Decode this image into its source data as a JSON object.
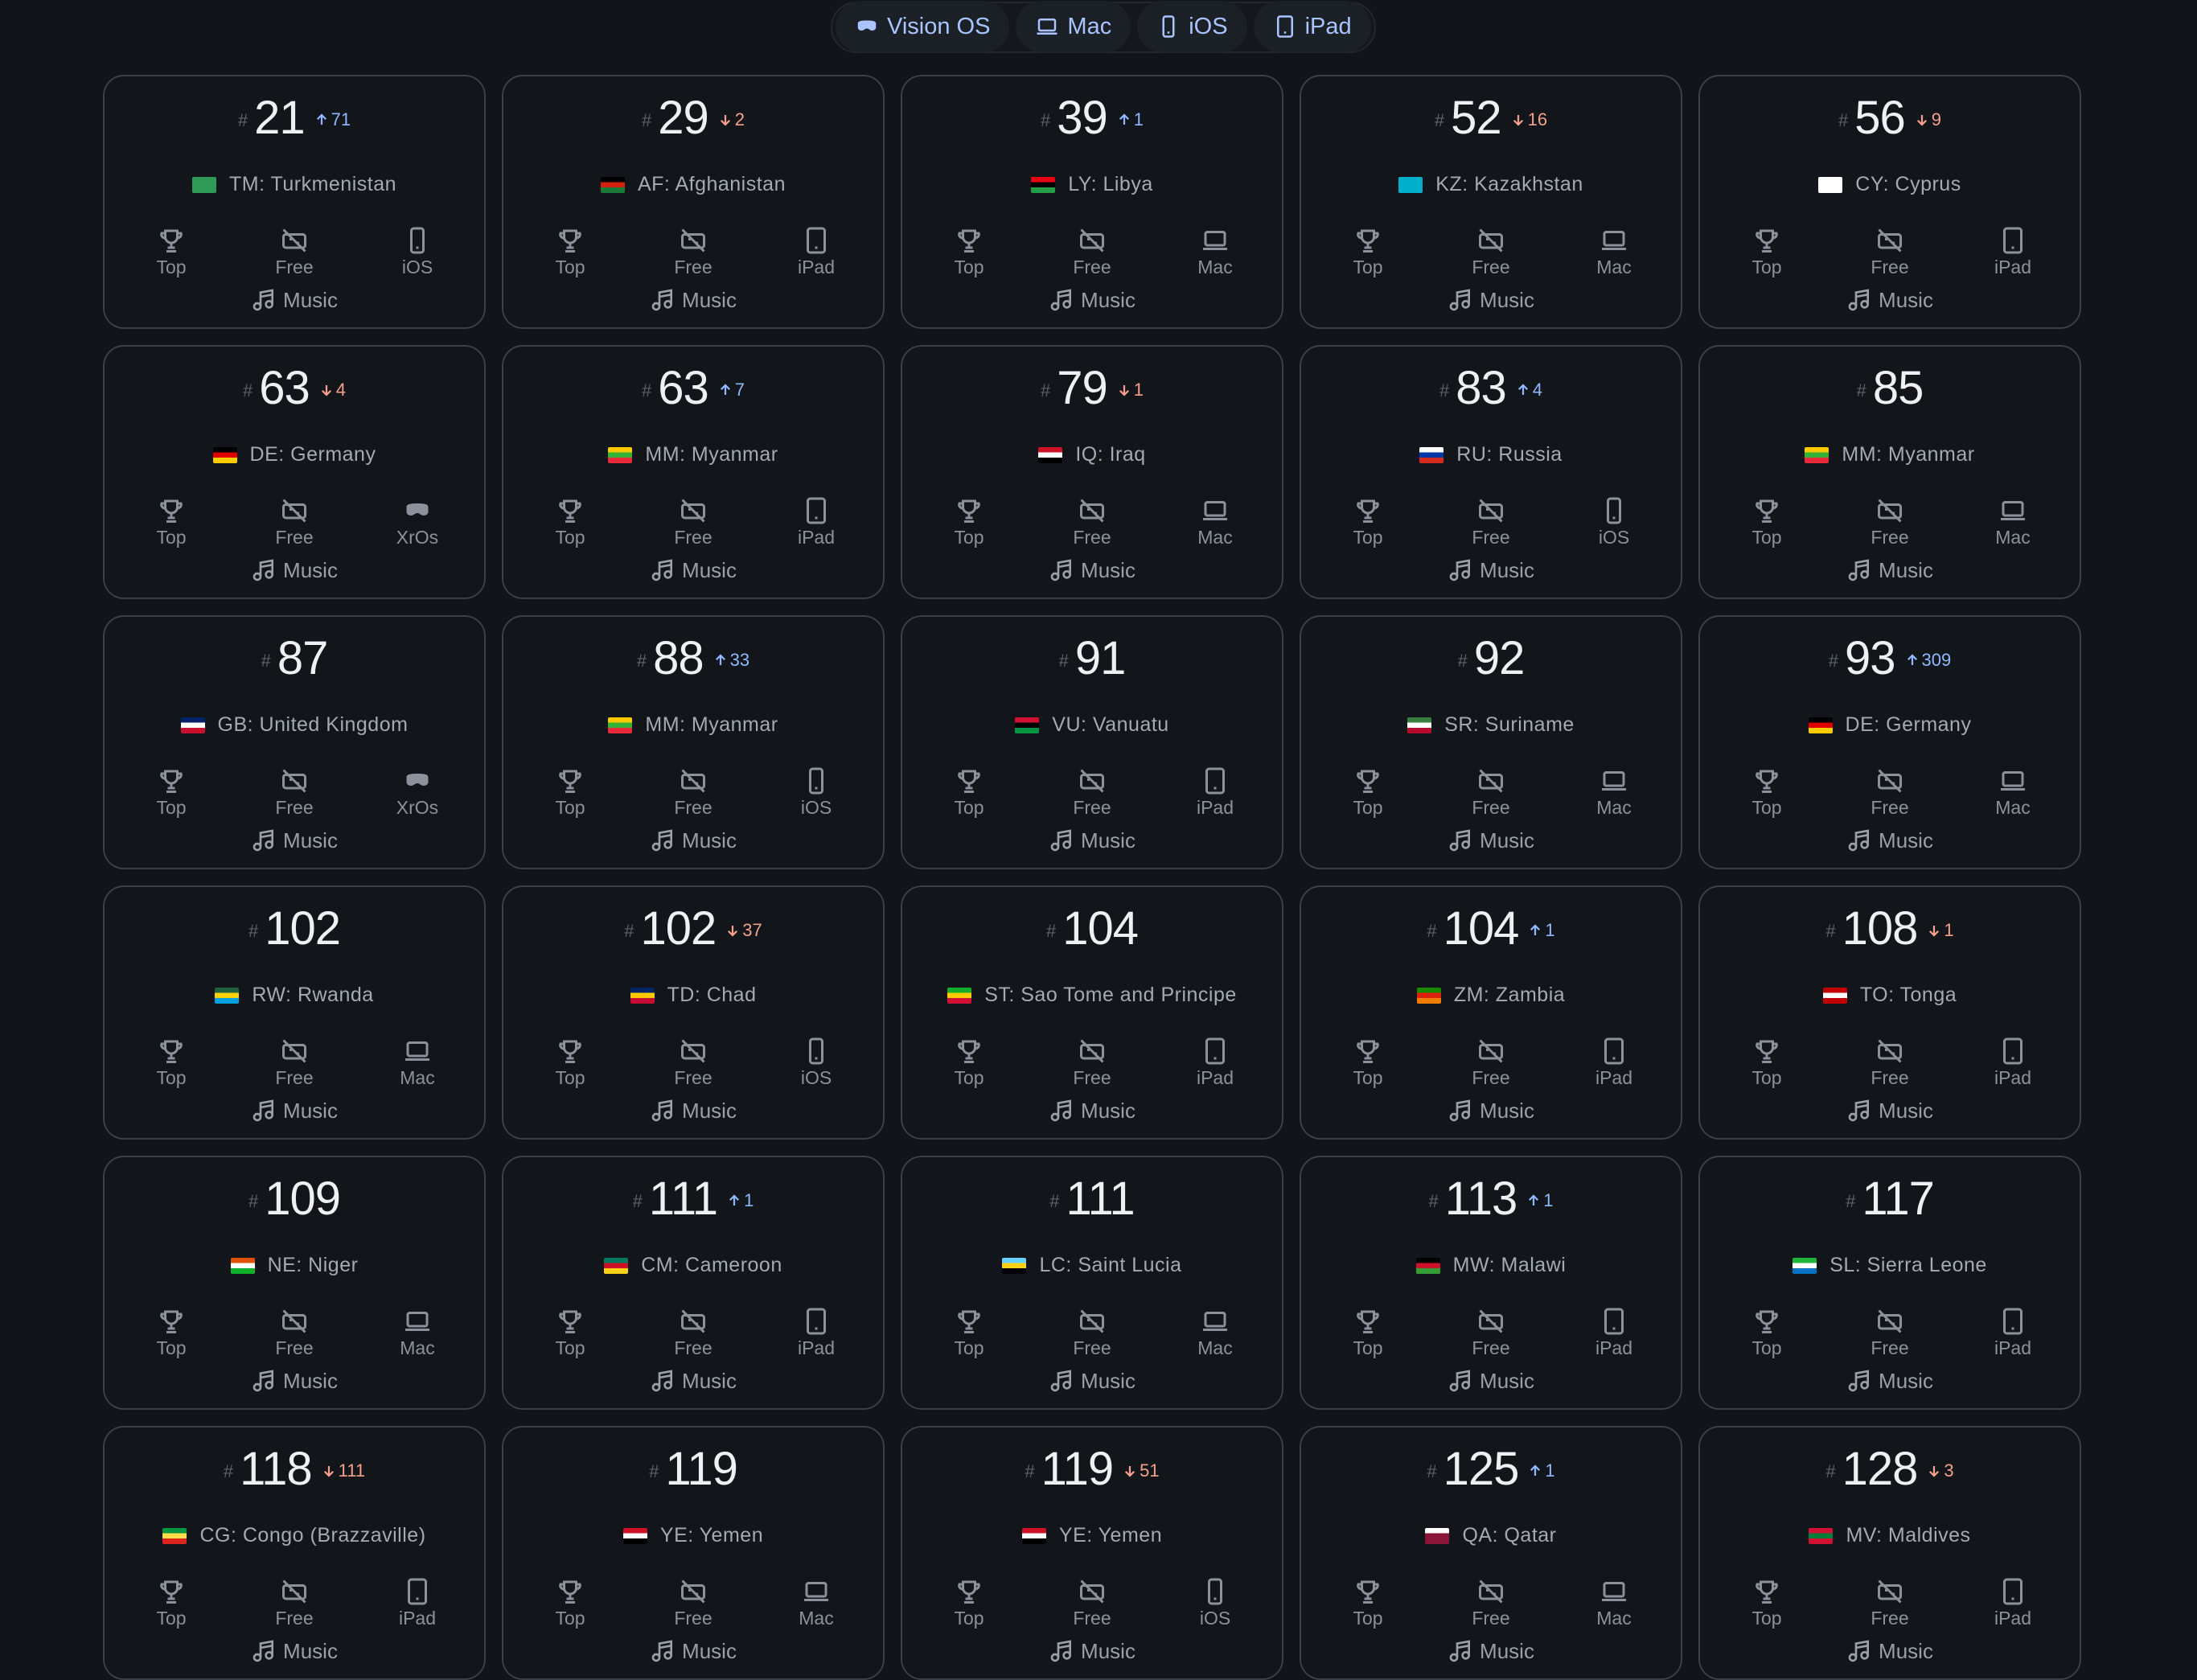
{
  "filters": [
    {
      "label": "Vision OS",
      "icon": "visionos-icon"
    },
    {
      "label": "Mac",
      "icon": "laptop-icon"
    },
    {
      "label": "iOS",
      "icon": "phone-icon"
    },
    {
      "label": "iPad",
      "icon": "tablet-icon"
    }
  ],
  "colors": {
    "up": "#8fb8ff",
    "down": "#f4a08d",
    "tab_text": "#a9c4ff"
  },
  "labels": {
    "hash": "#",
    "top": "Top",
    "free": "Free",
    "category": "Music"
  },
  "cards": [
    {
      "rank": "21",
      "dir": "up",
      "delta": "71",
      "country": "TM: Turkmenistan",
      "flag": [
        "#2f9a57",
        "#2f9a57",
        "#2f9a57"
      ],
      "device": "iOS",
      "device_icon": "phone-icon"
    },
    {
      "rank": "29",
      "dir": "down",
      "delta": "2",
      "country": "AF: Afghanistan",
      "flag": [
        "#000000",
        "#d32011",
        "#1a7a3a"
      ],
      "device": "iPad",
      "device_icon": "tablet-icon"
    },
    {
      "rank": "39",
      "dir": "up",
      "delta": "1",
      "country": "LY: Libya",
      "flag": [
        "#e70013",
        "#000000",
        "#239e46"
      ],
      "device": "Mac",
      "device_icon": "laptop-icon"
    },
    {
      "rank": "52",
      "dir": "down",
      "delta": "16",
      "country": "KZ: Kazakhstan",
      "flag": [
        "#00afca",
        "#00afca",
        "#00afca"
      ],
      "device": "Mac",
      "device_icon": "laptop-icon"
    },
    {
      "rank": "56",
      "dir": "down",
      "delta": "9",
      "country": "CY: Cyprus",
      "flag": [
        "#ffffff",
        "#ffffff",
        "#ffffff"
      ],
      "device": "iPad",
      "device_icon": "tablet-icon"
    },
    {
      "rank": "63",
      "dir": "down",
      "delta": "4",
      "country": "DE: Germany",
      "flag": [
        "#000000",
        "#dd0000",
        "#ffce00"
      ],
      "device": "XrOs",
      "device_icon": "visionos-icon"
    },
    {
      "rank": "63",
      "dir": "up",
      "delta": "7",
      "country": "MM: Myanmar",
      "flag": [
        "#fecb00",
        "#34b233",
        "#ea2839"
      ],
      "device": "iPad",
      "device_icon": "tablet-icon"
    },
    {
      "rank": "79",
      "dir": "down",
      "delta": "1",
      "country": "IQ: Iraq",
      "flag": [
        "#ce1126",
        "#ffffff",
        "#000000"
      ],
      "device": "Mac",
      "device_icon": "laptop-icon"
    },
    {
      "rank": "83",
      "dir": "up",
      "delta": "4",
      "country": "RU: Russia",
      "flag": [
        "#ffffff",
        "#0039a6",
        "#d52b1e"
      ],
      "device": "iOS",
      "device_icon": "phone-icon"
    },
    {
      "rank": "85",
      "dir": "",
      "delta": "",
      "country": "MM: Myanmar",
      "flag": [
        "#fecb00",
        "#34b233",
        "#ea2839"
      ],
      "device": "Mac",
      "device_icon": "laptop-icon"
    },
    {
      "rank": "87",
      "dir": "",
      "delta": "",
      "country": "GB: United Kingdom",
      "flag": [
        "#012169",
        "#ffffff",
        "#c8102e"
      ],
      "device": "XrOs",
      "device_icon": "visionos-icon"
    },
    {
      "rank": "88",
      "dir": "up",
      "delta": "33",
      "country": "MM: Myanmar",
      "flag": [
        "#fecb00",
        "#34b233",
        "#ea2839"
      ],
      "device": "iOS",
      "device_icon": "phone-icon"
    },
    {
      "rank": "91",
      "dir": "",
      "delta": "",
      "country": "VU: Vanuatu",
      "flag": [
        "#d21034",
        "#000000",
        "#009543"
      ],
      "device": "iPad",
      "device_icon": "tablet-icon"
    },
    {
      "rank": "92",
      "dir": "",
      "delta": "",
      "country": "SR: Suriname",
      "flag": [
        "#377e3f",
        "#ffffff",
        "#b40a2d"
      ],
      "device": "Mac",
      "device_icon": "laptop-icon"
    },
    {
      "rank": "93",
      "dir": "up",
      "delta": "309",
      "country": "DE: Germany",
      "flag": [
        "#000000",
        "#dd0000",
        "#ffce00"
      ],
      "device": "Mac",
      "device_icon": "laptop-icon"
    },
    {
      "rank": "102",
      "dir": "",
      "delta": "",
      "country": "RW: Rwanda",
      "flag": [
        "#20603d",
        "#fad201",
        "#00a1de"
      ],
      "device": "Mac",
      "device_icon": "laptop-icon"
    },
    {
      "rank": "102",
      "dir": "down",
      "delta": "37",
      "country": "TD: Chad",
      "flag": [
        "#002664",
        "#fecb00",
        "#c60c30"
      ],
      "device": "iOS",
      "device_icon": "phone-icon"
    },
    {
      "rank": "104",
      "dir": "",
      "delta": "",
      "country": "ST: Sao Tome and Principe",
      "flag": [
        "#12ad2b",
        "#ffce00",
        "#d21034"
      ],
      "device": "iPad",
      "device_icon": "tablet-icon"
    },
    {
      "rank": "104",
      "dir": "up",
      "delta": "1",
      "country": "ZM: Zambia",
      "flag": [
        "#198a00",
        "#de2010",
        "#ef7d00"
      ],
      "device": "iPad",
      "device_icon": "tablet-icon"
    },
    {
      "rank": "108",
      "dir": "down",
      "delta": "1",
      "country": "TO: Tonga",
      "flag": [
        "#c10000",
        "#ffffff",
        "#c10000"
      ],
      "device": "iPad",
      "device_icon": "tablet-icon"
    },
    {
      "rank": "109",
      "dir": "",
      "delta": "",
      "country": "NE: Niger",
      "flag": [
        "#e05206",
        "#ffffff",
        "#0db02b"
      ],
      "device": "Mac",
      "device_icon": "laptop-icon"
    },
    {
      "rank": "111",
      "dir": "up",
      "delta": "1",
      "country": "CM: Cameroon",
      "flag": [
        "#007a5e",
        "#ce1126",
        "#fcd116"
      ],
      "device": "iPad",
      "device_icon": "tablet-icon"
    },
    {
      "rank": "111",
      "dir": "",
      "delta": "",
      "country": "LC: Saint Lucia",
      "flag": [
        "#65cfff",
        "#fcd116",
        "#000000"
      ],
      "device": "Mac",
      "device_icon": "laptop-icon"
    },
    {
      "rank": "113",
      "dir": "up",
      "delta": "1",
      "country": "MW: Malawi",
      "flag": [
        "#000000",
        "#ce1126",
        "#339e35"
      ],
      "device": "iPad",
      "device_icon": "tablet-icon"
    },
    {
      "rank": "117",
      "dir": "",
      "delta": "",
      "country": "SL: Sierra Leone",
      "flag": [
        "#1eb53a",
        "#ffffff",
        "#0072c6"
      ],
      "device": "iPad",
      "device_icon": "tablet-icon"
    },
    {
      "rank": "118",
      "dir": "down",
      "delta": "111",
      "country": "CG: Congo (Brazzaville)",
      "flag": [
        "#009543",
        "#fbde4a",
        "#dc241f"
      ],
      "device": "iPad",
      "device_icon": "tablet-icon"
    },
    {
      "rank": "119",
      "dir": "",
      "delta": "",
      "country": "YE: Yemen",
      "flag": [
        "#ce1126",
        "#ffffff",
        "#000000"
      ],
      "device": "Mac",
      "device_icon": "laptop-icon"
    },
    {
      "rank": "119",
      "dir": "down",
      "delta": "51",
      "country": "YE: Yemen",
      "flag": [
        "#ce1126",
        "#ffffff",
        "#000000"
      ],
      "device": "iOS",
      "device_icon": "phone-icon"
    },
    {
      "rank": "125",
      "dir": "up",
      "delta": "1",
      "country": "QA: Qatar",
      "flag": [
        "#ffffff",
        "#8a1538",
        "#8a1538"
      ],
      "device": "Mac",
      "device_icon": "laptop-icon"
    },
    {
      "rank": "128",
      "dir": "down",
      "delta": "3",
      "country": "MV: Maldives",
      "flag": [
        "#d21034",
        "#007e3a",
        "#d21034"
      ],
      "device": "iPad",
      "device_icon": "tablet-icon"
    }
  ]
}
